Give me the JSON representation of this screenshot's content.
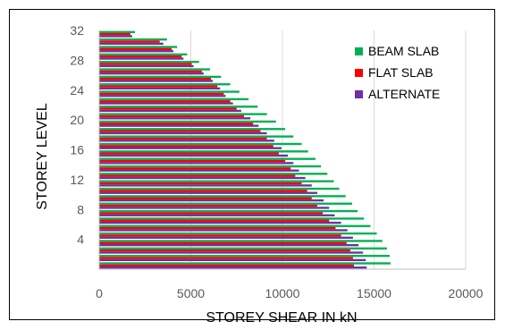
{
  "chart_data": {
    "type": "bar",
    "orientation": "horizontal",
    "xlabel": "STOREY SHEAR IN kN",
    "ylabel": "STOREY LEVEL",
    "xlim": [
      0,
      20000
    ],
    "ylim": [
      0,
      32
    ],
    "x_ticks": [
      "0",
      "5000",
      "10000",
      "15000",
      "20000"
    ],
    "y_ticks": [
      "4",
      "8",
      "12",
      "16",
      "20",
      "24",
      "28",
      "32"
    ],
    "grid": "vertical",
    "legend_position": "top-right",
    "categories": [
      1,
      2,
      3,
      4,
      5,
      6,
      7,
      8,
      9,
      10,
      11,
      12,
      13,
      14,
      15,
      16,
      17,
      18,
      19,
      20,
      21,
      22,
      23,
      24,
      25,
      26,
      27,
      28,
      29,
      30,
      31,
      32
    ],
    "series": [
      {
        "name": "BEAM SLAB",
        "color": "#00b050",
        "values": [
          15900,
          15850,
          15700,
          15450,
          15150,
          14800,
          14450,
          14100,
          13800,
          13450,
          13100,
          12800,
          12450,
          12100,
          11800,
          11400,
          11050,
          10600,
          10150,
          9650,
          9150,
          8650,
          8150,
          7650,
          7150,
          6650,
          6050,
          5450,
          4800,
          4250,
          3700,
          1950
        ]
      },
      {
        "name": "FLAT SLAB",
        "color": "#ff0000",
        "values": [
          13900,
          13850,
          13700,
          13500,
          13200,
          12900,
          12550,
          12200,
          11900,
          11600,
          11350,
          11050,
          10700,
          10450,
          10150,
          9800,
          9500,
          9150,
          8800,
          8400,
          7900,
          7500,
          7150,
          6800,
          6450,
          6100,
          5600,
          5050,
          4500,
          3950,
          3300,
          1700
        ]
      },
      {
        "name": "ALTERNATE",
        "color": "#7030a0",
        "values": [
          14600,
          14550,
          14400,
          14150,
          13850,
          13550,
          13200,
          12850,
          12550,
          12250,
          11900,
          11600,
          11250,
          10900,
          10600,
          10300,
          9950,
          9550,
          9150,
          8700,
          8250,
          7750,
          7300,
          6900,
          6600,
          6200,
          5700,
          5150,
          4600,
          4050,
          3500,
          1800
        ]
      }
    ]
  }
}
